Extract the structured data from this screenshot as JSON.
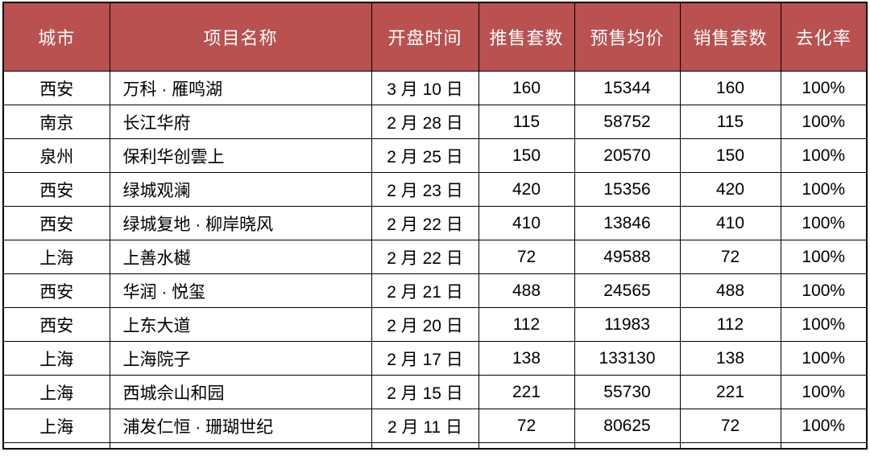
{
  "colors": {
    "header_bg": "#b85150",
    "header_text": "#ffffff",
    "border": "#000000",
    "body_text": "#000000"
  },
  "table": {
    "columns": [
      {
        "key": "city",
        "label": "城市"
      },
      {
        "key": "project-name",
        "label": "项目名称"
      },
      {
        "key": "opening-date",
        "label": "开盘时间"
      },
      {
        "key": "units-offered",
        "label": "推售套数"
      },
      {
        "key": "presale-avg-price",
        "label": "预售均价"
      },
      {
        "key": "units-sold",
        "label": "销售套数"
      },
      {
        "key": "absorption-rate",
        "label": "去化率"
      }
    ],
    "rows": [
      [
        "西安",
        "万科 · 雁鸣湖",
        "3 月 10 日",
        "160",
        "15344",
        "160",
        "100%"
      ],
      [
        "南京",
        "长江华府",
        "2 月 28 日",
        "115",
        "58752",
        "115",
        "100%"
      ],
      [
        "泉州",
        "保利华创雲上",
        "2 月 25 日",
        "150",
        "20570",
        "150",
        "100%"
      ],
      [
        "西安",
        "绿城观澜",
        "2 月 23 日",
        "420",
        "15356",
        "420",
        "100%"
      ],
      [
        "西安",
        "绿城复地 · 柳岸晓风",
        "2 月 22 日",
        "410",
        "13846",
        "410",
        "100%"
      ],
      [
        "上海",
        "上善水樾",
        "2 月 22 日",
        "72",
        "49588",
        "72",
        "100%"
      ],
      [
        "西安",
        "华润 · 悦玺",
        "2 月 21 日",
        "488",
        "24565",
        "488",
        "100%"
      ],
      [
        "西安",
        "上东大道",
        "2 月 20 日",
        "112",
        "11983",
        "112",
        "100%"
      ],
      [
        "上海",
        "上海院子",
        "2 月 17 日",
        "138",
        "133130",
        "138",
        "100%"
      ],
      [
        "上海",
        "西城佘山和园",
        "2 月 15 日",
        "221",
        "55730",
        "221",
        "100%"
      ],
      [
        "上海",
        "浦发仁恒 · 珊瑚世纪",
        "2 月 11 日",
        "72",
        "80625",
        "72",
        "100%"
      ]
    ]
  },
  "chart_data": {
    "type": "table",
    "title": "",
    "columns": [
      "城市",
      "项目名称",
      "开盘时间",
      "推售套数",
      "预售均价",
      "销售套数",
      "去化率"
    ],
    "rows": [
      [
        "西安",
        "万科·雁鸣湖",
        "3月10日",
        160,
        15344,
        160,
        "100%"
      ],
      [
        "南京",
        "长江华府",
        "2月28日",
        115,
        58752,
        115,
        "100%"
      ],
      [
        "泉州",
        "保利华创雲上",
        "2月25日",
        150,
        20570,
        150,
        "100%"
      ],
      [
        "西安",
        "绿城观澜",
        "2月23日",
        420,
        15356,
        420,
        "100%"
      ],
      [
        "西安",
        "绿城复地·柳岸晓风",
        "2月22日",
        410,
        13846,
        410,
        "100%"
      ],
      [
        "上海",
        "上善水樾",
        "2月22日",
        72,
        49588,
        72,
        "100%"
      ],
      [
        "西安",
        "华润·悦玺",
        "2月21日",
        488,
        24565,
        488,
        "100%"
      ],
      [
        "西安",
        "上东大道",
        "2月20日",
        112,
        11983,
        112,
        "100%"
      ],
      [
        "上海",
        "上海院子",
        "2月17日",
        138,
        133130,
        138,
        "100%"
      ],
      [
        "上海",
        "西城佘山和园",
        "2月15日",
        221,
        55730,
        221,
        "100%"
      ],
      [
        "上海",
        "浦发仁恒·珊瑚世纪",
        "2月11日",
        72,
        80625,
        72,
        "100%"
      ]
    ]
  }
}
